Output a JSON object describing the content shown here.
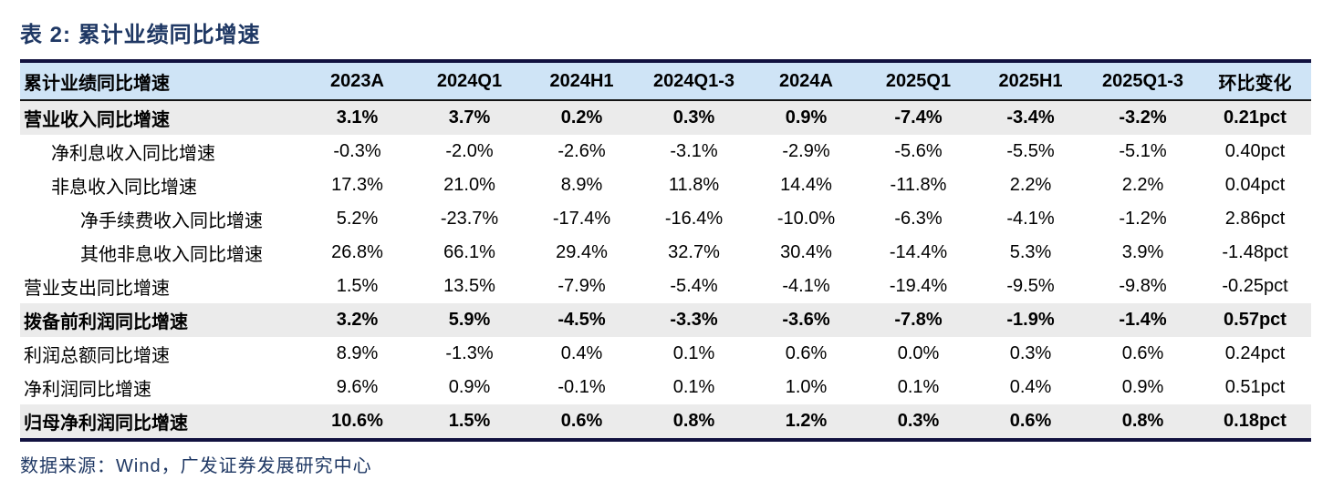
{
  "chart_data": {
    "type": "table",
    "title": "表 2: 累计业绩同比增速",
    "source_note": "数据来源：Wind，广发证券发展研究中心",
    "columns": [
      "累计业绩同比增速",
      "2023A",
      "2024Q1",
      "2024H1",
      "2024Q1-3",
      "2024A",
      "2025Q1",
      "2025H1",
      "2025Q1-3",
      "环比变化"
    ],
    "rows": [
      {
        "label": "营业收入同比增速",
        "indent": 0,
        "bold": true,
        "shaded": true,
        "values": [
          "3.1%",
          "3.7%",
          "0.2%",
          "0.3%",
          "0.9%",
          "-7.4%",
          "-3.4%",
          "-3.2%",
          "0.21pct"
        ]
      },
      {
        "label": "净利息收入同比增速",
        "indent": 1,
        "bold": false,
        "shaded": false,
        "values": [
          "-0.3%",
          "-2.0%",
          "-2.6%",
          "-3.1%",
          "-2.9%",
          "-5.6%",
          "-5.5%",
          "-5.1%",
          "0.40pct"
        ]
      },
      {
        "label": "非息收入同比增速",
        "indent": 1,
        "bold": false,
        "shaded": false,
        "values": [
          "17.3%",
          "21.0%",
          "8.9%",
          "11.8%",
          "14.4%",
          "-11.8%",
          "2.2%",
          "2.2%",
          "0.04pct"
        ]
      },
      {
        "label": "净手续费收入同比增速",
        "indent": 2,
        "bold": false,
        "shaded": false,
        "values": [
          "5.2%",
          "-23.7%",
          "-17.4%",
          "-16.4%",
          "-10.0%",
          "-6.3%",
          "-4.1%",
          "-1.2%",
          "2.86pct"
        ]
      },
      {
        "label": "其他非息收入同比增速",
        "indent": 2,
        "bold": false,
        "shaded": false,
        "values": [
          "26.8%",
          "66.1%",
          "29.4%",
          "32.7%",
          "30.4%",
          "-14.4%",
          "5.3%",
          "3.9%",
          "-1.48pct"
        ]
      },
      {
        "label": "营业支出同比增速",
        "indent": 0,
        "bold": false,
        "shaded": false,
        "values": [
          "1.5%",
          "13.5%",
          "-7.9%",
          "-5.4%",
          "-4.1%",
          "-19.4%",
          "-9.5%",
          "-9.8%",
          "-0.25pct"
        ]
      },
      {
        "label": "拨备前利润同比增速",
        "indent": 0,
        "bold": true,
        "shaded": true,
        "values": [
          "3.2%",
          "5.9%",
          "-4.5%",
          "-3.3%",
          "-3.6%",
          "-7.8%",
          "-1.9%",
          "-1.4%",
          "0.57pct"
        ]
      },
      {
        "label": "利润总额同比增速",
        "indent": 0,
        "bold": false,
        "shaded": false,
        "values": [
          "8.9%",
          "-1.3%",
          "0.4%",
          "0.1%",
          "0.6%",
          "0.0%",
          "0.3%",
          "0.6%",
          "0.24pct"
        ]
      },
      {
        "label": "净利润同比增速",
        "indent": 0,
        "bold": false,
        "shaded": false,
        "values": [
          "9.6%",
          "0.9%",
          "-0.1%",
          "0.1%",
          "1.0%",
          "0.1%",
          "0.4%",
          "0.9%",
          "0.51pct"
        ]
      },
      {
        "label": "归母净利润同比增速",
        "indent": 0,
        "bold": true,
        "shaded": true,
        "values": [
          "10.6%",
          "1.5%",
          "0.6%",
          "0.8%",
          "1.2%",
          "0.3%",
          "0.6%",
          "0.8%",
          "0.18pct"
        ]
      }
    ]
  },
  "colors": {
    "title_text": "#1f3864",
    "border_navy": "#11113f",
    "header_bg": "#cfe4f6",
    "shaded_row_bg": "#ebebeb",
    "body_text": "#000000"
  }
}
